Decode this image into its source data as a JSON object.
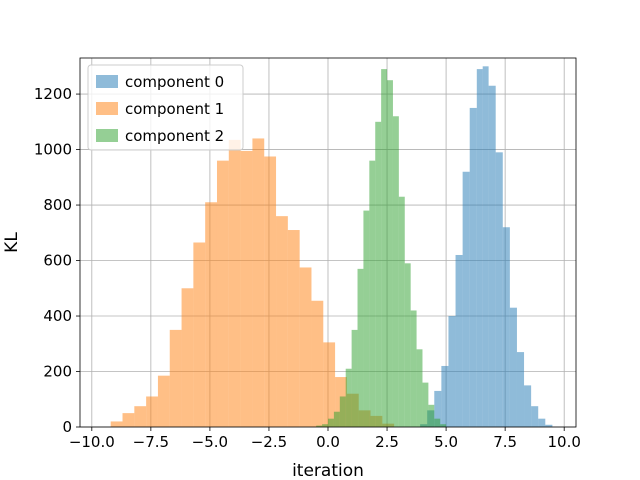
{
  "chart_data": {
    "type": "histogram",
    "xlabel": "iteration",
    "ylabel": "KL",
    "xlim": [
      -10.5,
      10.5
    ],
    "ylim": [
      0,
      1330
    ],
    "xticks": [
      -10.0,
      -7.5,
      -5.0,
      -2.5,
      0.0,
      2.5,
      5.0,
      7.5,
      10.0
    ],
    "xtick_labels": [
      "−10.0",
      "−7.5",
      "−5.0",
      "−2.5",
      "0.0",
      "2.5",
      "5.0",
      "7.5",
      "10.0"
    ],
    "yticks": [
      0,
      200,
      400,
      600,
      800,
      1000,
      1200
    ],
    "ytick_labels": [
      "0",
      "200",
      "400",
      "600",
      "800",
      "1000",
      "1200"
    ],
    "grid": true,
    "legend_position": "top-left",
    "series": [
      {
        "name": "component 0",
        "color": "#1f77b4",
        "alpha": 0.5,
        "bins": [
          [
            3.9,
            4.2,
            10
          ],
          [
            4.2,
            4.5,
            60
          ],
          [
            4.5,
            4.8,
            130
          ],
          [
            4.8,
            5.1,
            220
          ],
          [
            5.1,
            5.4,
            400
          ],
          [
            5.4,
            5.7,
            620
          ],
          [
            5.7,
            6.0,
            920
          ],
          [
            6.0,
            6.3,
            1150
          ],
          [
            6.3,
            6.55,
            1290
          ],
          [
            6.55,
            6.8,
            1300
          ],
          [
            6.8,
            7.1,
            1230
          ],
          [
            7.1,
            7.4,
            990
          ],
          [
            7.4,
            7.7,
            720
          ],
          [
            7.7,
            8.0,
            430
          ],
          [
            8.0,
            8.3,
            270
          ],
          [
            8.3,
            8.6,
            150
          ],
          [
            8.6,
            8.9,
            75
          ],
          [
            8.9,
            9.2,
            30
          ],
          [
            9.2,
            9.5,
            8
          ]
        ]
      },
      {
        "name": "component 1",
        "color": "#ff7f0e",
        "alpha": 0.5,
        "bins": [
          [
            -9.2,
            -8.7,
            20
          ],
          [
            -8.7,
            -8.2,
            50
          ],
          [
            -8.2,
            -7.7,
            75
          ],
          [
            -7.7,
            -7.2,
            110
          ],
          [
            -7.2,
            -6.7,
            185
          ],
          [
            -6.7,
            -6.2,
            350
          ],
          [
            -6.2,
            -5.7,
            500
          ],
          [
            -5.7,
            -5.2,
            665
          ],
          [
            -5.2,
            -4.7,
            810
          ],
          [
            -4.7,
            -4.2,
            960
          ],
          [
            -4.2,
            -3.7,
            1035
          ],
          [
            -3.7,
            -3.2,
            995
          ],
          [
            -3.2,
            -2.7,
            1040
          ],
          [
            -2.7,
            -2.2,
            975
          ],
          [
            -2.2,
            -1.7,
            760
          ],
          [
            -1.7,
            -1.2,
            710
          ],
          [
            -1.2,
            -0.7,
            575
          ],
          [
            -0.7,
            -0.2,
            455
          ],
          [
            -0.2,
            0.3,
            305
          ],
          [
            0.3,
            0.8,
            180
          ],
          [
            0.8,
            1.3,
            120
          ],
          [
            1.3,
            1.8,
            60
          ],
          [
            1.8,
            2.3,
            40
          ],
          [
            2.3,
            2.8,
            12
          ]
        ]
      },
      {
        "name": "component 2",
        "color": "#2ca02c",
        "alpha": 0.5,
        "bins": [
          [
            -0.5,
            -0.25,
            5
          ],
          [
            -0.25,
            0.0,
            10
          ],
          [
            0.0,
            0.25,
            30
          ],
          [
            0.25,
            0.5,
            55
          ],
          [
            0.5,
            0.75,
            110
          ],
          [
            0.75,
            1.0,
            210
          ],
          [
            1.0,
            1.25,
            350
          ],
          [
            1.25,
            1.5,
            570
          ],
          [
            1.5,
            1.75,
            780
          ],
          [
            1.75,
            2.0,
            960
          ],
          [
            2.0,
            2.25,
            1100
          ],
          [
            2.25,
            2.5,
            1290
          ],
          [
            2.5,
            2.75,
            1250
          ],
          [
            2.75,
            3.0,
            1120
          ],
          [
            3.0,
            3.25,
            830
          ],
          [
            3.25,
            3.5,
            590
          ],
          [
            3.5,
            3.75,
            420
          ],
          [
            3.75,
            4.0,
            280
          ],
          [
            4.0,
            4.25,
            160
          ],
          [
            4.25,
            4.5,
            80
          ],
          [
            4.5,
            4.75,
            30
          ],
          [
            4.75,
            5.0,
            10
          ]
        ]
      }
    ]
  }
}
